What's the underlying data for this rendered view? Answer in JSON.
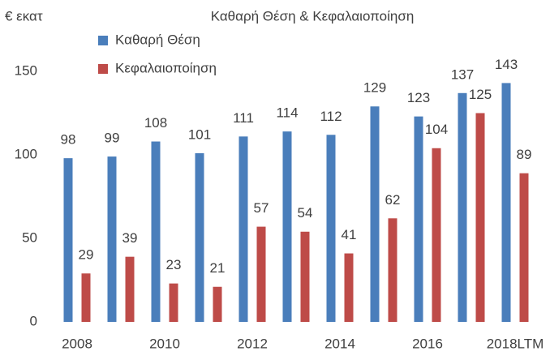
{
  "chart_data": {
    "type": "bar",
    "title": "Καθαρή Θέση & Κεφαλαιοποίηση",
    "y_label": "€ εκατ",
    "categories": [
      "2008",
      null,
      "2010",
      null,
      "2012",
      null,
      "2014",
      null,
      "2016",
      null,
      "2018LTM"
    ],
    "series": [
      {
        "name": "Καθαρή Θέση",
        "color": "#4a7ebb",
        "values": [
          98,
          99,
          108,
          101,
          111,
          114,
          112,
          129,
          123,
          137,
          143
        ]
      },
      {
        "name": "Κεφαλαιοποίηση",
        "color": "#be4b48",
        "values": [
          29,
          39,
          23,
          21,
          57,
          54,
          41,
          62,
          104,
          125,
          89
        ]
      }
    ],
    "ylim": [
      0,
      150
    ],
    "yticks": [
      0,
      50,
      100,
      150
    ],
    "grid": false,
    "legend": "top-left"
  }
}
